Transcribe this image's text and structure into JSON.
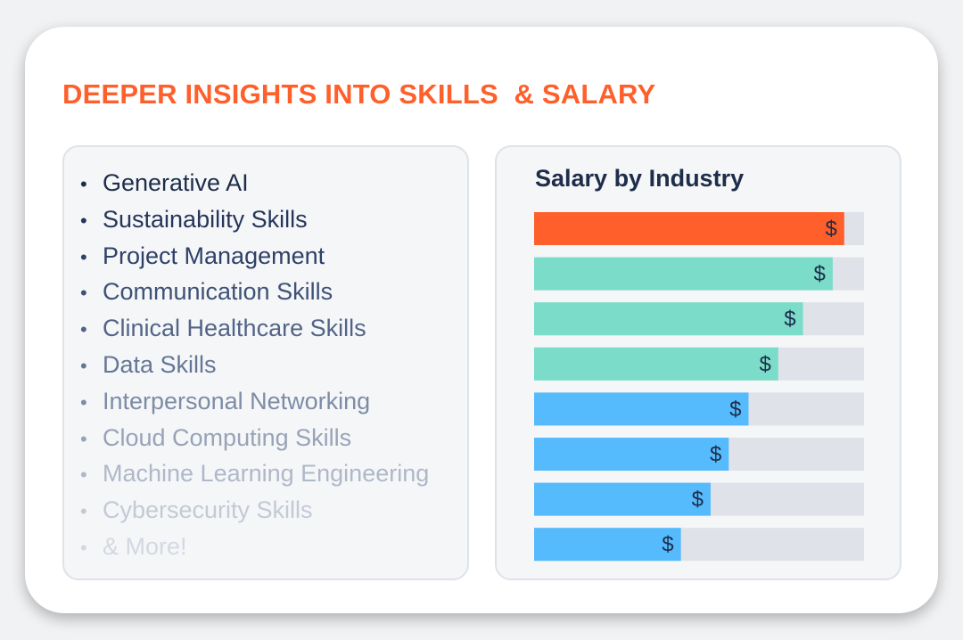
{
  "header": {
    "title": "DEEPER INSIGHTS INTO SKILLS  & SALARY"
  },
  "skills": {
    "items": [
      {
        "label": "Generative AI",
        "color": "#1e2d4a"
      },
      {
        "label": "Sustainability Skills",
        "color": "#25365a"
      },
      {
        "label": "Project Management",
        "color": "#2f4168"
      },
      {
        "label": "Communication Skills",
        "color": "#3e5176"
      },
      {
        "label": "Clinical Healthcare Skills",
        "color": "#526486"
      },
      {
        "label": "Data Skills",
        "color": "#657796"
      },
      {
        "label": "Interpersonal Networking",
        "color": "#7d8ca6"
      },
      {
        "label": "Cloud Computing Skills",
        "color": "#97a3b7"
      },
      {
        "label": "Machine Learning Engineering",
        "color": "#afb8c8"
      },
      {
        "label": "Cybersecurity Skills",
        "color": "#c3cad6"
      },
      {
        "label": "& More!",
        "color": "#d3d8e1"
      }
    ],
    "bullet": "•"
  },
  "chart_data": {
    "type": "bar",
    "title": "Salary by Industry",
    "orientation": "horizontal",
    "xlim": [
      0,
      1
    ],
    "track_color": "#dfe2e8",
    "bar_label": "$",
    "values": [
      0.94,
      0.905,
      0.815,
      0.74,
      0.65,
      0.59,
      0.535,
      0.445
    ],
    "colors": [
      "#ff5f2a",
      "#7adcc9",
      "#7adcc9",
      "#7adcc9",
      "#55bbfc",
      "#55bbfc",
      "#55bbfc",
      "#55bbfc"
    ]
  }
}
